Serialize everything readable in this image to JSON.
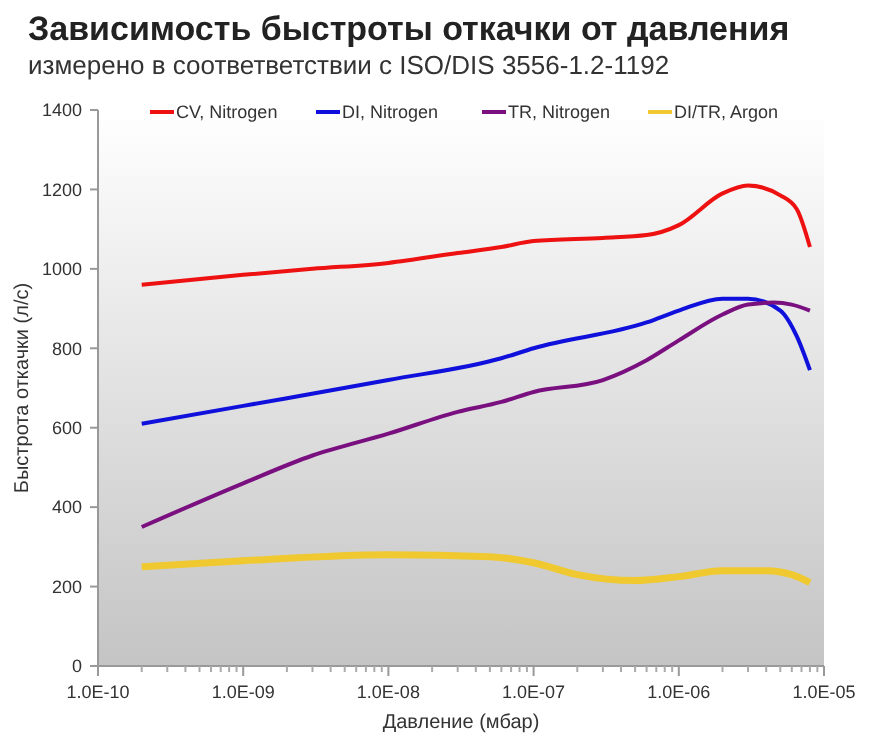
{
  "chart_data": {
    "type": "line",
    "title": "Зависимость быстроты откачки от давления",
    "subtitle": "измерено в соответветствии с  ISO/DIS 3556-1.2-1192",
    "xlabel": "Давление (мбар)",
    "ylabel": "Быстрота откачки (л/с)",
    "log": "x",
    "grid": false,
    "legend": "top",
    "marker": "none",
    "line_style": "solid",
    "xlim": [
      1e-10,
      1e-05
    ],
    "xticks": [
      {
        "value": 1e-10,
        "label": "1.0E-10"
      },
      {
        "value": 1e-09,
        "label": "1.0E-09"
      },
      {
        "value": 1e-08,
        "label": "1.0E-08"
      },
      {
        "value": 1e-07,
        "label": "1.0E-07"
      },
      {
        "value": 1e-06,
        "label": "1.0E-06"
      },
      {
        "value": 1e-05,
        "label": "1.0E-05"
      }
    ],
    "ylim": [
      0,
      1400
    ],
    "yticks": [
      0,
      200,
      400,
      600,
      800,
      1000,
      1200,
      1400
    ],
    "series": [
      {
        "name": "CV, Nitrogen",
        "color": "#ee1111",
        "x": [
          2e-10,
          1e-09,
          3e-09,
          1e-08,
          3e-08,
          6e-08,
          1e-07,
          3e-07,
          6e-07,
          1e-06,
          2e-06,
          3e-06,
          5e-06,
          6.5e-06,
          8e-06
        ],
        "values": [
          960,
          985,
          1000,
          1015,
          1040,
          1055,
          1070,
          1078,
          1085,
          1110,
          1190,
          1210,
          1185,
          1150,
          1055
        ]
      },
      {
        "name": "DI, Nitrogen",
        "color": "#1010dd",
        "x": [
          2e-10,
          1e-09,
          1e-08,
          6e-08,
          1e-07,
          6e-07,
          1e-06,
          2e-06,
          3e-06,
          5e-06,
          6.5e-06,
          8e-06
        ],
        "values": [
          610,
          655,
          720,
          775,
          800,
          865,
          895,
          925,
          925,
          895,
          830,
          745
        ]
      },
      {
        "name": "TR, Nitrogen",
        "color": "#7a1080",
        "x": [
          2e-10,
          1e-09,
          3e-09,
          1e-08,
          3e-08,
          6e-08,
          1e-07,
          3e-07,
          6e-07,
          1e-06,
          2e-06,
          3e-06,
          4.5e-06,
          6e-06,
          8e-06
        ],
        "values": [
          350,
          460,
          530,
          585,
          640,
          665,
          690,
          720,
          770,
          820,
          885,
          910,
          915,
          910,
          895
        ]
      },
      {
        "name": "DI/TR, Argon",
        "color": "#f0c830",
        "x": [
          2e-10,
          1e-09,
          1e-08,
          5e-08,
          1e-07,
          2e-07,
          5e-07,
          1e-06,
          2e-06,
          4e-06,
          6e-06,
          8e-06
        ],
        "values": [
          250,
          265,
          280,
          275,
          260,
          230,
          215,
          225,
          240,
          240,
          230,
          210
        ]
      }
    ]
  }
}
